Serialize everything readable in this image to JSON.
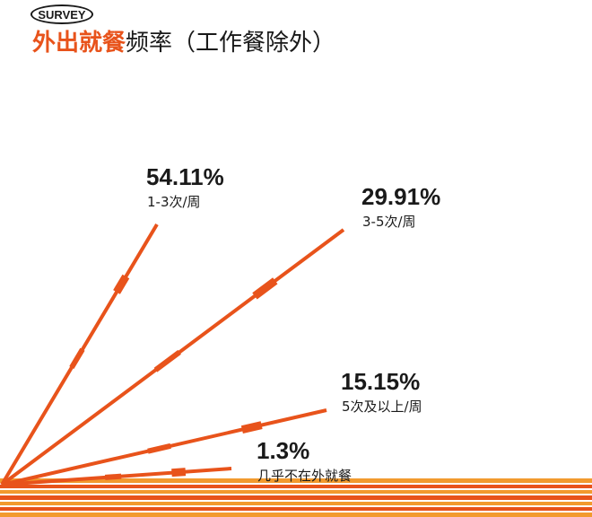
{
  "badge": "SURVEY",
  "title": {
    "highlight": "外出就餐",
    "rest": "频率（工作餐除外）"
  },
  "colors": {
    "accent": "#e8531b",
    "text": "#1a1a1a"
  },
  "chart_data": {
    "type": "bar",
    "categories": [
      "1-3次/周",
      "3-5次/周",
      "5次及以上/周",
      "几乎不在外就餐"
    ],
    "values": [
      54.11,
      29.91,
      15.15,
      1.3
    ],
    "value_labels": [
      "54.11%",
      "29.91%",
      "15.15%",
      "1.3%"
    ],
    "title": "",
    "xlabel": "",
    "ylabel": ""
  }
}
